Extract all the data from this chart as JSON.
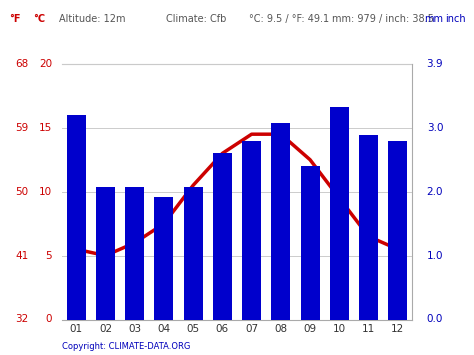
{
  "months": [
    "01",
    "02",
    "03",
    "04",
    "05",
    "06",
    "07",
    "08",
    "09",
    "10",
    "11",
    "12"
  ],
  "precipitation_mm": [
    80,
    52,
    52,
    48,
    52,
    65,
    70,
    77,
    60,
    83,
    72,
    70
  ],
  "temperature_c": [
    5.5,
    5.0,
    6.0,
    7.5,
    10.5,
    13.0,
    14.5,
    14.5,
    12.5,
    9.5,
    6.5,
    5.5
  ],
  "bar_color": "#0000cc",
  "line_color": "#cc0000",
  "background_color": "#ffffff",
  "grid_color": "#cccccc",
  "left_axis_color": "#cc0000",
  "right_axis_color": "#0000bb",
  "copyright": "Copyright: CLIMATE-DATA.ORG",
  "ylim_temp_c": [
    0,
    20
  ],
  "ylim_precip_mm": [
    0,
    100
  ],
  "yticks_left_c": [
    0,
    5,
    10,
    15,
    20
  ],
  "yticks_left_f": [
    32,
    41,
    50,
    59,
    68
  ],
  "yticks_right_mm": [
    0,
    25,
    50,
    75,
    100
  ],
  "yticks_right_inch": [
    "0.0",
    "1.0",
    "2.0",
    "3.0",
    "3.9"
  ]
}
